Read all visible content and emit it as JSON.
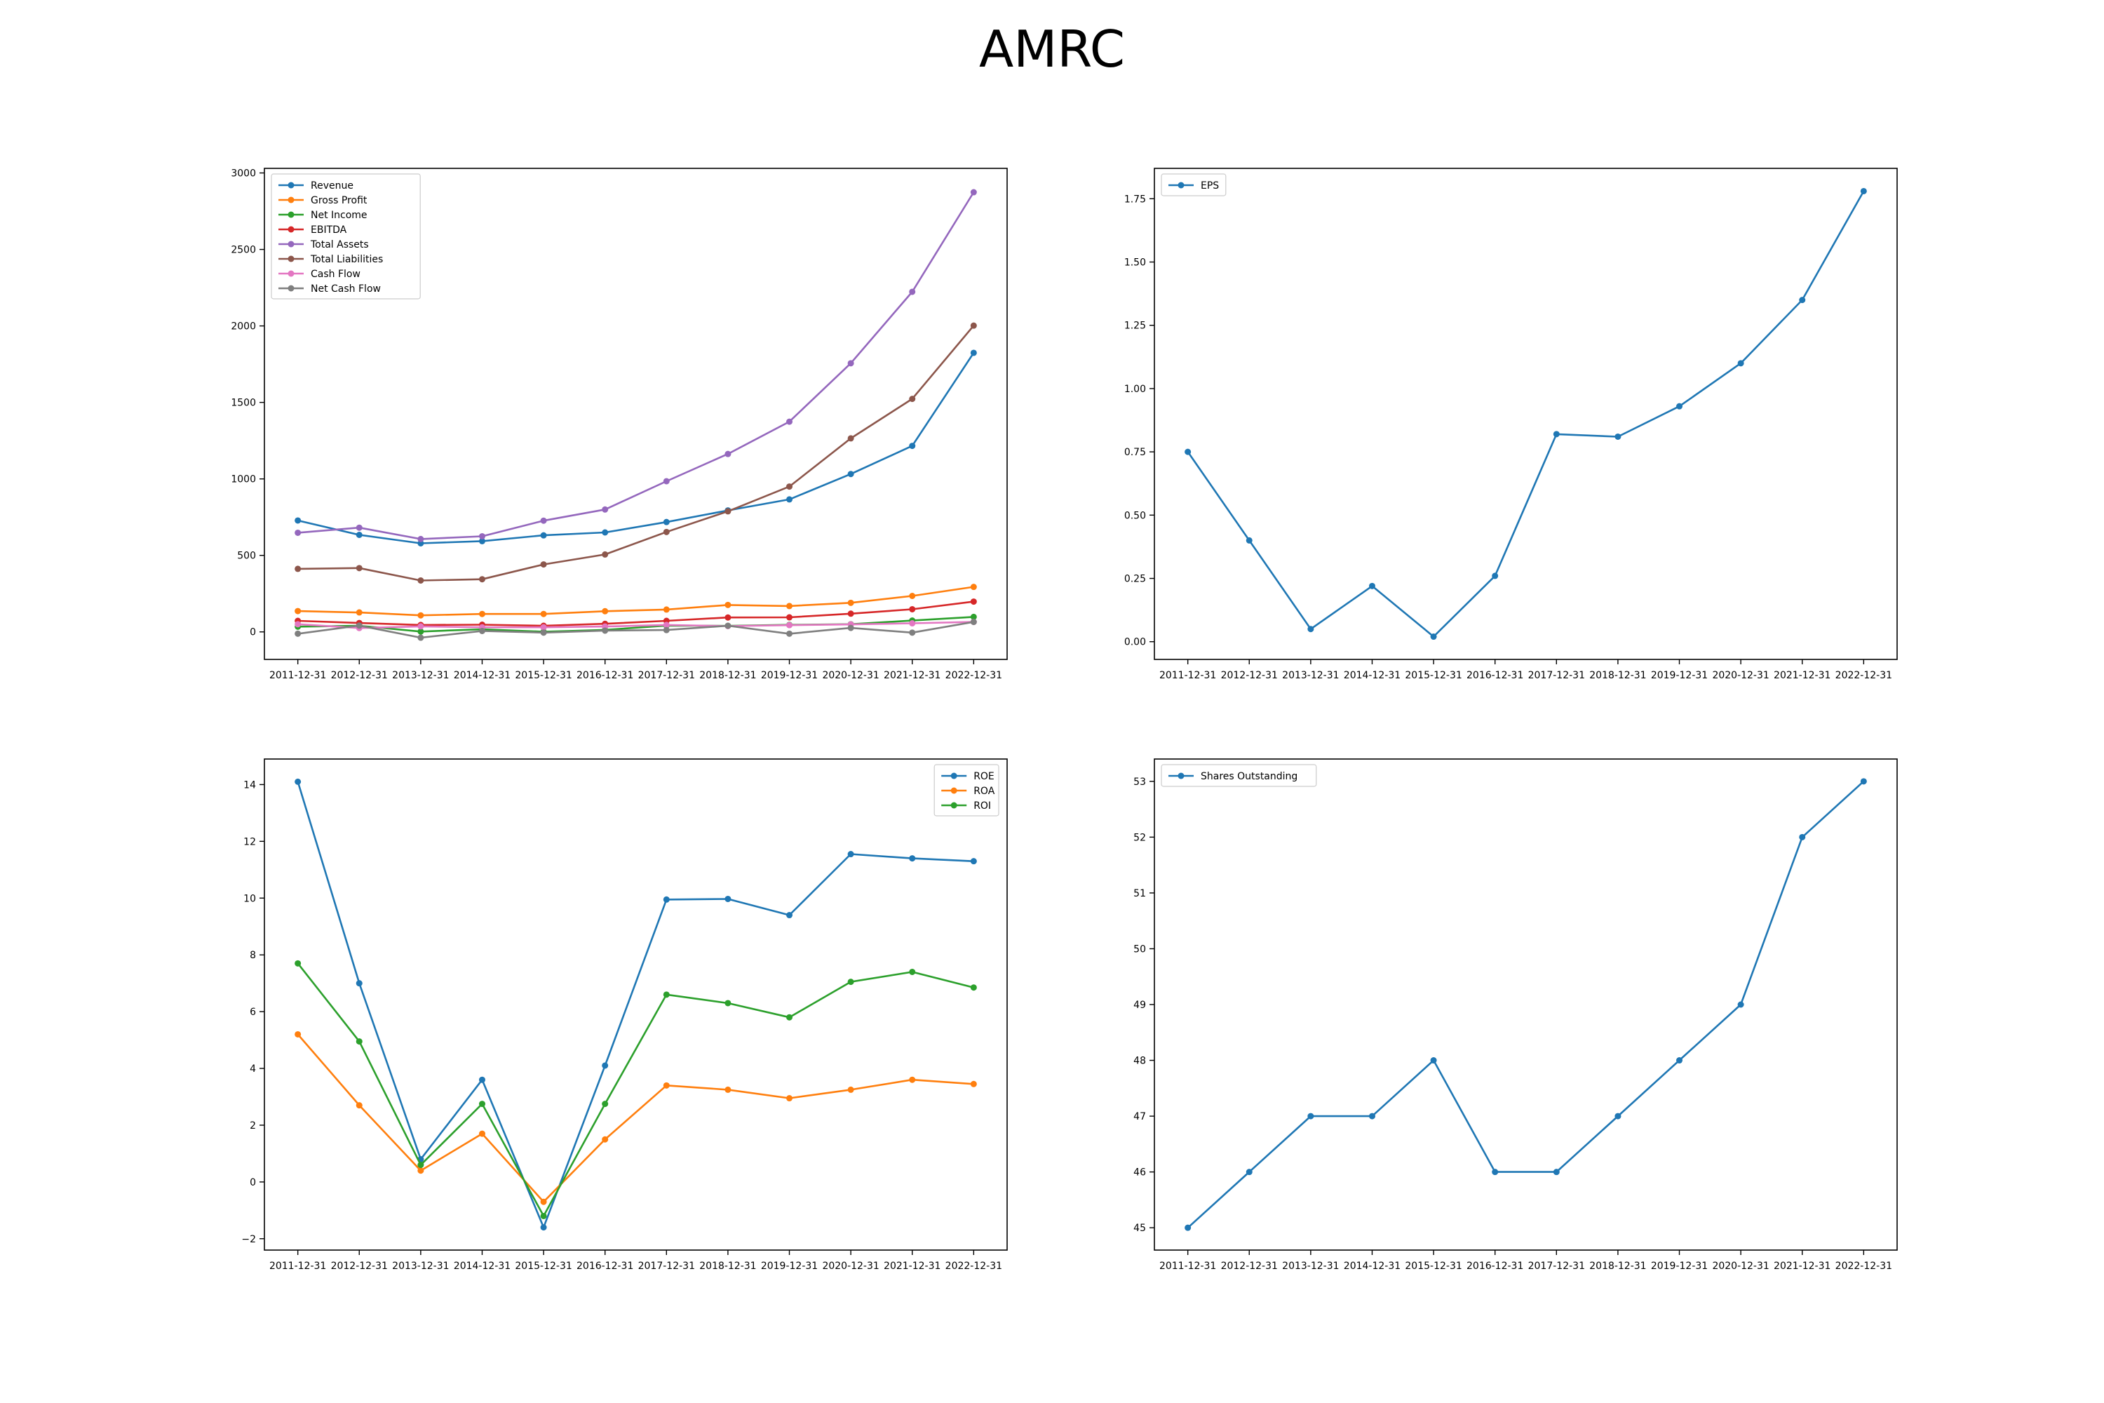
{
  "title": "AMRC",
  "chart_data": [
    {
      "type": "line",
      "title": "",
      "xlabel": "",
      "ylabel": "",
      "x": [
        "2011-12-31",
        "2012-12-31",
        "2013-12-31",
        "2014-12-31",
        "2015-12-31",
        "2016-12-31",
        "2017-12-31",
        "2018-12-31",
        "2019-12-31",
        "2020-12-31",
        "2021-12-31",
        "2022-12-31"
      ],
      "ylim": [
        -180,
        3030
      ],
      "yticks": [
        0,
        500,
        1000,
        1500,
        2000,
        2500,
        3000
      ],
      "legend": "top-left",
      "grid": false,
      "series": [
        {
          "name": "Revenue",
          "color": "#1f77b4",
          "values": [
            728,
            634,
            579,
            593,
            631,
            650,
            718,
            794,
            866,
            1032,
            1216,
            1824
          ]
        },
        {
          "name": "Gross Profit",
          "color": "#ff7f0e",
          "values": [
            136,
            127,
            108,
            117,
            117,
            135,
            146,
            176,
            169,
            190,
            235,
            294
          ]
        },
        {
          "name": "Net Income",
          "color": "#2ca02c",
          "values": [
            34,
            40,
            2,
            17,
            1,
            13,
            41,
            39,
            46,
            50,
            74,
            98
          ]
        },
        {
          "name": "EBITDA",
          "color": "#d62728",
          "values": [
            72,
            58,
            45,
            47,
            40,
            53,
            72,
            94,
            95,
            119,
            148,
            198
          ]
        },
        {
          "name": "Total Assets",
          "color": "#9467bd",
          "values": [
            648,
            681,
            607,
            625,
            727,
            800,
            985,
            1163,
            1374,
            1756,
            2223,
            2874
          ]
        },
        {
          "name": "Total Liabilities",
          "color": "#8c564b",
          "values": [
            412,
            417,
            336,
            344,
            441,
            506,
            653,
            788,
            950,
            1265,
            1523,
            2002
          ]
        },
        {
          "name": "Cash Flow",
          "color": "#e377c2",
          "values": [
            50,
            25,
            36,
            30,
            30,
            35,
            45,
            38,
            44,
            49,
            56,
            65
          ]
        },
        {
          "name": "Net Cash Flow",
          "color": "#7f7f7f",
          "values": [
            -12,
            41,
            -38,
            6,
            -5,
            8,
            12,
            40,
            -12,
            26,
            -5,
            65
          ]
        }
      ]
    },
    {
      "type": "line",
      "title": "",
      "xlabel": "",
      "ylabel": "",
      "x": [
        "2011-12-31",
        "2012-12-31",
        "2013-12-31",
        "2014-12-31",
        "2015-12-31",
        "2016-12-31",
        "2017-12-31",
        "2018-12-31",
        "2019-12-31",
        "2020-12-31",
        "2021-12-31",
        "2022-12-31"
      ],
      "ylim": [
        -0.07,
        1.87
      ],
      "yticks": [
        0.0,
        0.25,
        0.5,
        0.75,
        1.0,
        1.25,
        1.5,
        1.75
      ],
      "tickdecimals": 2,
      "legend": "top-left",
      "grid": false,
      "series": [
        {
          "name": "EPS",
          "color": "#1f77b4",
          "values": [
            0.75,
            0.4,
            0.05,
            0.22,
            0.02,
            0.26,
            0.82,
            0.81,
            0.93,
            1.1,
            1.35,
            1.78
          ]
        }
      ]
    },
    {
      "type": "line",
      "title": "",
      "xlabel": "",
      "ylabel": "",
      "x": [
        "2011-12-31",
        "2012-12-31",
        "2013-12-31",
        "2014-12-31",
        "2015-12-31",
        "2016-12-31",
        "2017-12-31",
        "2018-12-31",
        "2019-12-31",
        "2020-12-31",
        "2021-12-31",
        "2022-12-31"
      ],
      "ylim": [
        -2.4,
        14.9
      ],
      "yticks": [
        -2,
        0,
        2,
        4,
        6,
        8,
        10,
        12,
        14
      ],
      "legend": "top-right",
      "grid": false,
      "series": [
        {
          "name": "ROE",
          "color": "#1f77b4",
          "values": [
            14.1,
            7.0,
            0.8,
            3.6,
            -1.6,
            4.1,
            9.95,
            9.97,
            9.4,
            11.55,
            11.4,
            11.3
          ]
        },
        {
          "name": "ROA",
          "color": "#ff7f0e",
          "values": [
            5.2,
            2.7,
            0.4,
            1.7,
            -0.7,
            1.5,
            3.4,
            3.25,
            2.95,
            3.25,
            3.6,
            3.45
          ]
        },
        {
          "name": "ROI",
          "color": "#2ca02c",
          "values": [
            7.7,
            4.95,
            0.6,
            2.75,
            -1.2,
            2.75,
            6.6,
            6.3,
            5.8,
            7.05,
            7.4,
            6.85
          ]
        }
      ]
    },
    {
      "type": "line",
      "title": "",
      "xlabel": "",
      "ylabel": "",
      "x": [
        "2011-12-31",
        "2012-12-31",
        "2013-12-31",
        "2014-12-31",
        "2015-12-31",
        "2016-12-31",
        "2017-12-31",
        "2018-12-31",
        "2019-12-31",
        "2020-12-31",
        "2021-12-31",
        "2022-12-31"
      ],
      "ylim": [
        44.6,
        53.4
      ],
      "yticks": [
        45,
        46,
        47,
        48,
        49,
        50,
        51,
        52,
        53
      ],
      "legend": "top-left",
      "grid": false,
      "series": [
        {
          "name": "Shares Outstanding",
          "color": "#1f77b4",
          "values": [
            45,
            46,
            47,
            47,
            48,
            46,
            46,
            47,
            48,
            49,
            52,
            53
          ]
        }
      ]
    }
  ]
}
